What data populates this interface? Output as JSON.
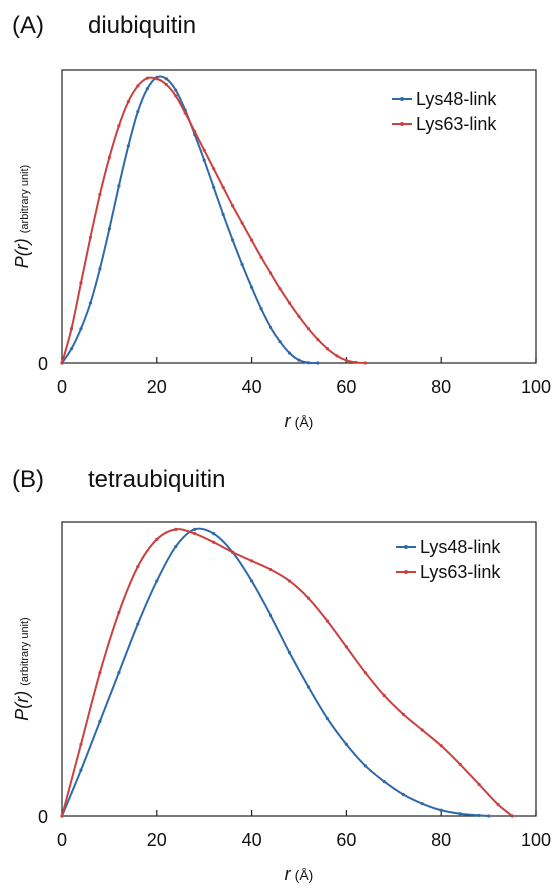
{
  "chart_data": [
    {
      "type": "line",
      "panel": "(A)",
      "title": "diubiquitin",
      "xlabel": "r",
      "xlabel_unit": "(Å)",
      "ylabel": "P(r)",
      "ylabel_unit": "(arbitrary unit)",
      "xlim": [
        0,
        100
      ],
      "ylim": [
        0,
        1
      ],
      "xticks": [
        "0",
        "20",
        "40",
        "60",
        "80",
        "100"
      ],
      "yticks": [
        "0"
      ],
      "grid": false,
      "legend": "top-right",
      "colors": {
        "Lys48-link": "#2f6aa8",
        "Lys63-link": "#cc4040"
      },
      "series": [
        {
          "name": "Lys48-link",
          "x": [
            0,
            2,
            4,
            6,
            8,
            10,
            12,
            14,
            16,
            18,
            20,
            22,
            24,
            26,
            28,
            30,
            32,
            34,
            36,
            38,
            40,
            42,
            44,
            46,
            48,
            50,
            52,
            54
          ],
          "y": [
            0,
            0.05,
            0.12,
            0.21,
            0.33,
            0.47,
            0.62,
            0.76,
            0.88,
            0.96,
            1.0,
            0.995,
            0.955,
            0.885,
            0.8,
            0.71,
            0.615,
            0.52,
            0.43,
            0.345,
            0.265,
            0.19,
            0.125,
            0.075,
            0.035,
            0.01,
            0.001,
            0
          ]
        },
        {
          "name": "Lys63-link",
          "x": [
            0,
            2,
            4,
            6,
            8,
            10,
            12,
            14,
            16,
            18,
            20,
            22,
            24,
            26,
            28,
            30,
            32,
            34,
            36,
            38,
            40,
            42,
            44,
            46,
            48,
            50,
            52,
            54,
            56,
            58,
            60,
            62,
            64
          ],
          "y": [
            0,
            0.12,
            0.28,
            0.44,
            0.59,
            0.72,
            0.83,
            0.915,
            0.97,
            0.997,
            0.995,
            0.975,
            0.935,
            0.875,
            0.81,
            0.745,
            0.68,
            0.615,
            0.55,
            0.49,
            0.43,
            0.37,
            0.315,
            0.26,
            0.21,
            0.163,
            0.12,
            0.082,
            0.05,
            0.025,
            0.009,
            0.002,
            0
          ]
        }
      ]
    },
    {
      "type": "line",
      "panel": "(B)",
      "title": "tetraubiquitin",
      "xlabel": "r",
      "xlabel_unit": "(Å)",
      "ylabel": "P(r)",
      "ylabel_unit": "(arbitrary unit)",
      "xlim": [
        0,
        100
      ],
      "ylim": [
        0,
        1
      ],
      "xticks": [
        "0",
        "20",
        "40",
        "60",
        "80",
        "100"
      ],
      "yticks": [
        "0"
      ],
      "grid": false,
      "legend": "top-right",
      "colors": {
        "Lys48-link": "#2f6aa8",
        "Lys63-link": "#cc4040"
      },
      "series": [
        {
          "name": "Lys48-link",
          "x": [
            0,
            4,
            8,
            12,
            16,
            20,
            24,
            28,
            32,
            36,
            40,
            44,
            48,
            52,
            56,
            60,
            64,
            68,
            72,
            76,
            80,
            84,
            88,
            90
          ],
          "y": [
            0,
            0.16,
            0.33,
            0.5,
            0.67,
            0.82,
            0.94,
            1.0,
            0.985,
            0.92,
            0.82,
            0.7,
            0.57,
            0.45,
            0.34,
            0.25,
            0.175,
            0.12,
            0.075,
            0.043,
            0.02,
            0.008,
            0.002,
            0
          ]
        },
        {
          "name": "Lys63-link",
          "x": [
            0,
            4,
            8,
            12,
            16,
            20,
            24,
            28,
            32,
            36,
            40,
            44,
            48,
            52,
            56,
            60,
            64,
            68,
            72,
            76,
            80,
            84,
            88,
            92,
            95
          ],
          "y": [
            0,
            0.25,
            0.5,
            0.71,
            0.87,
            0.965,
            1.0,
            0.985,
            0.955,
            0.92,
            0.89,
            0.86,
            0.82,
            0.76,
            0.68,
            0.59,
            0.5,
            0.42,
            0.355,
            0.3,
            0.245,
            0.18,
            0.11,
            0.04,
            0
          ]
        }
      ]
    }
  ]
}
